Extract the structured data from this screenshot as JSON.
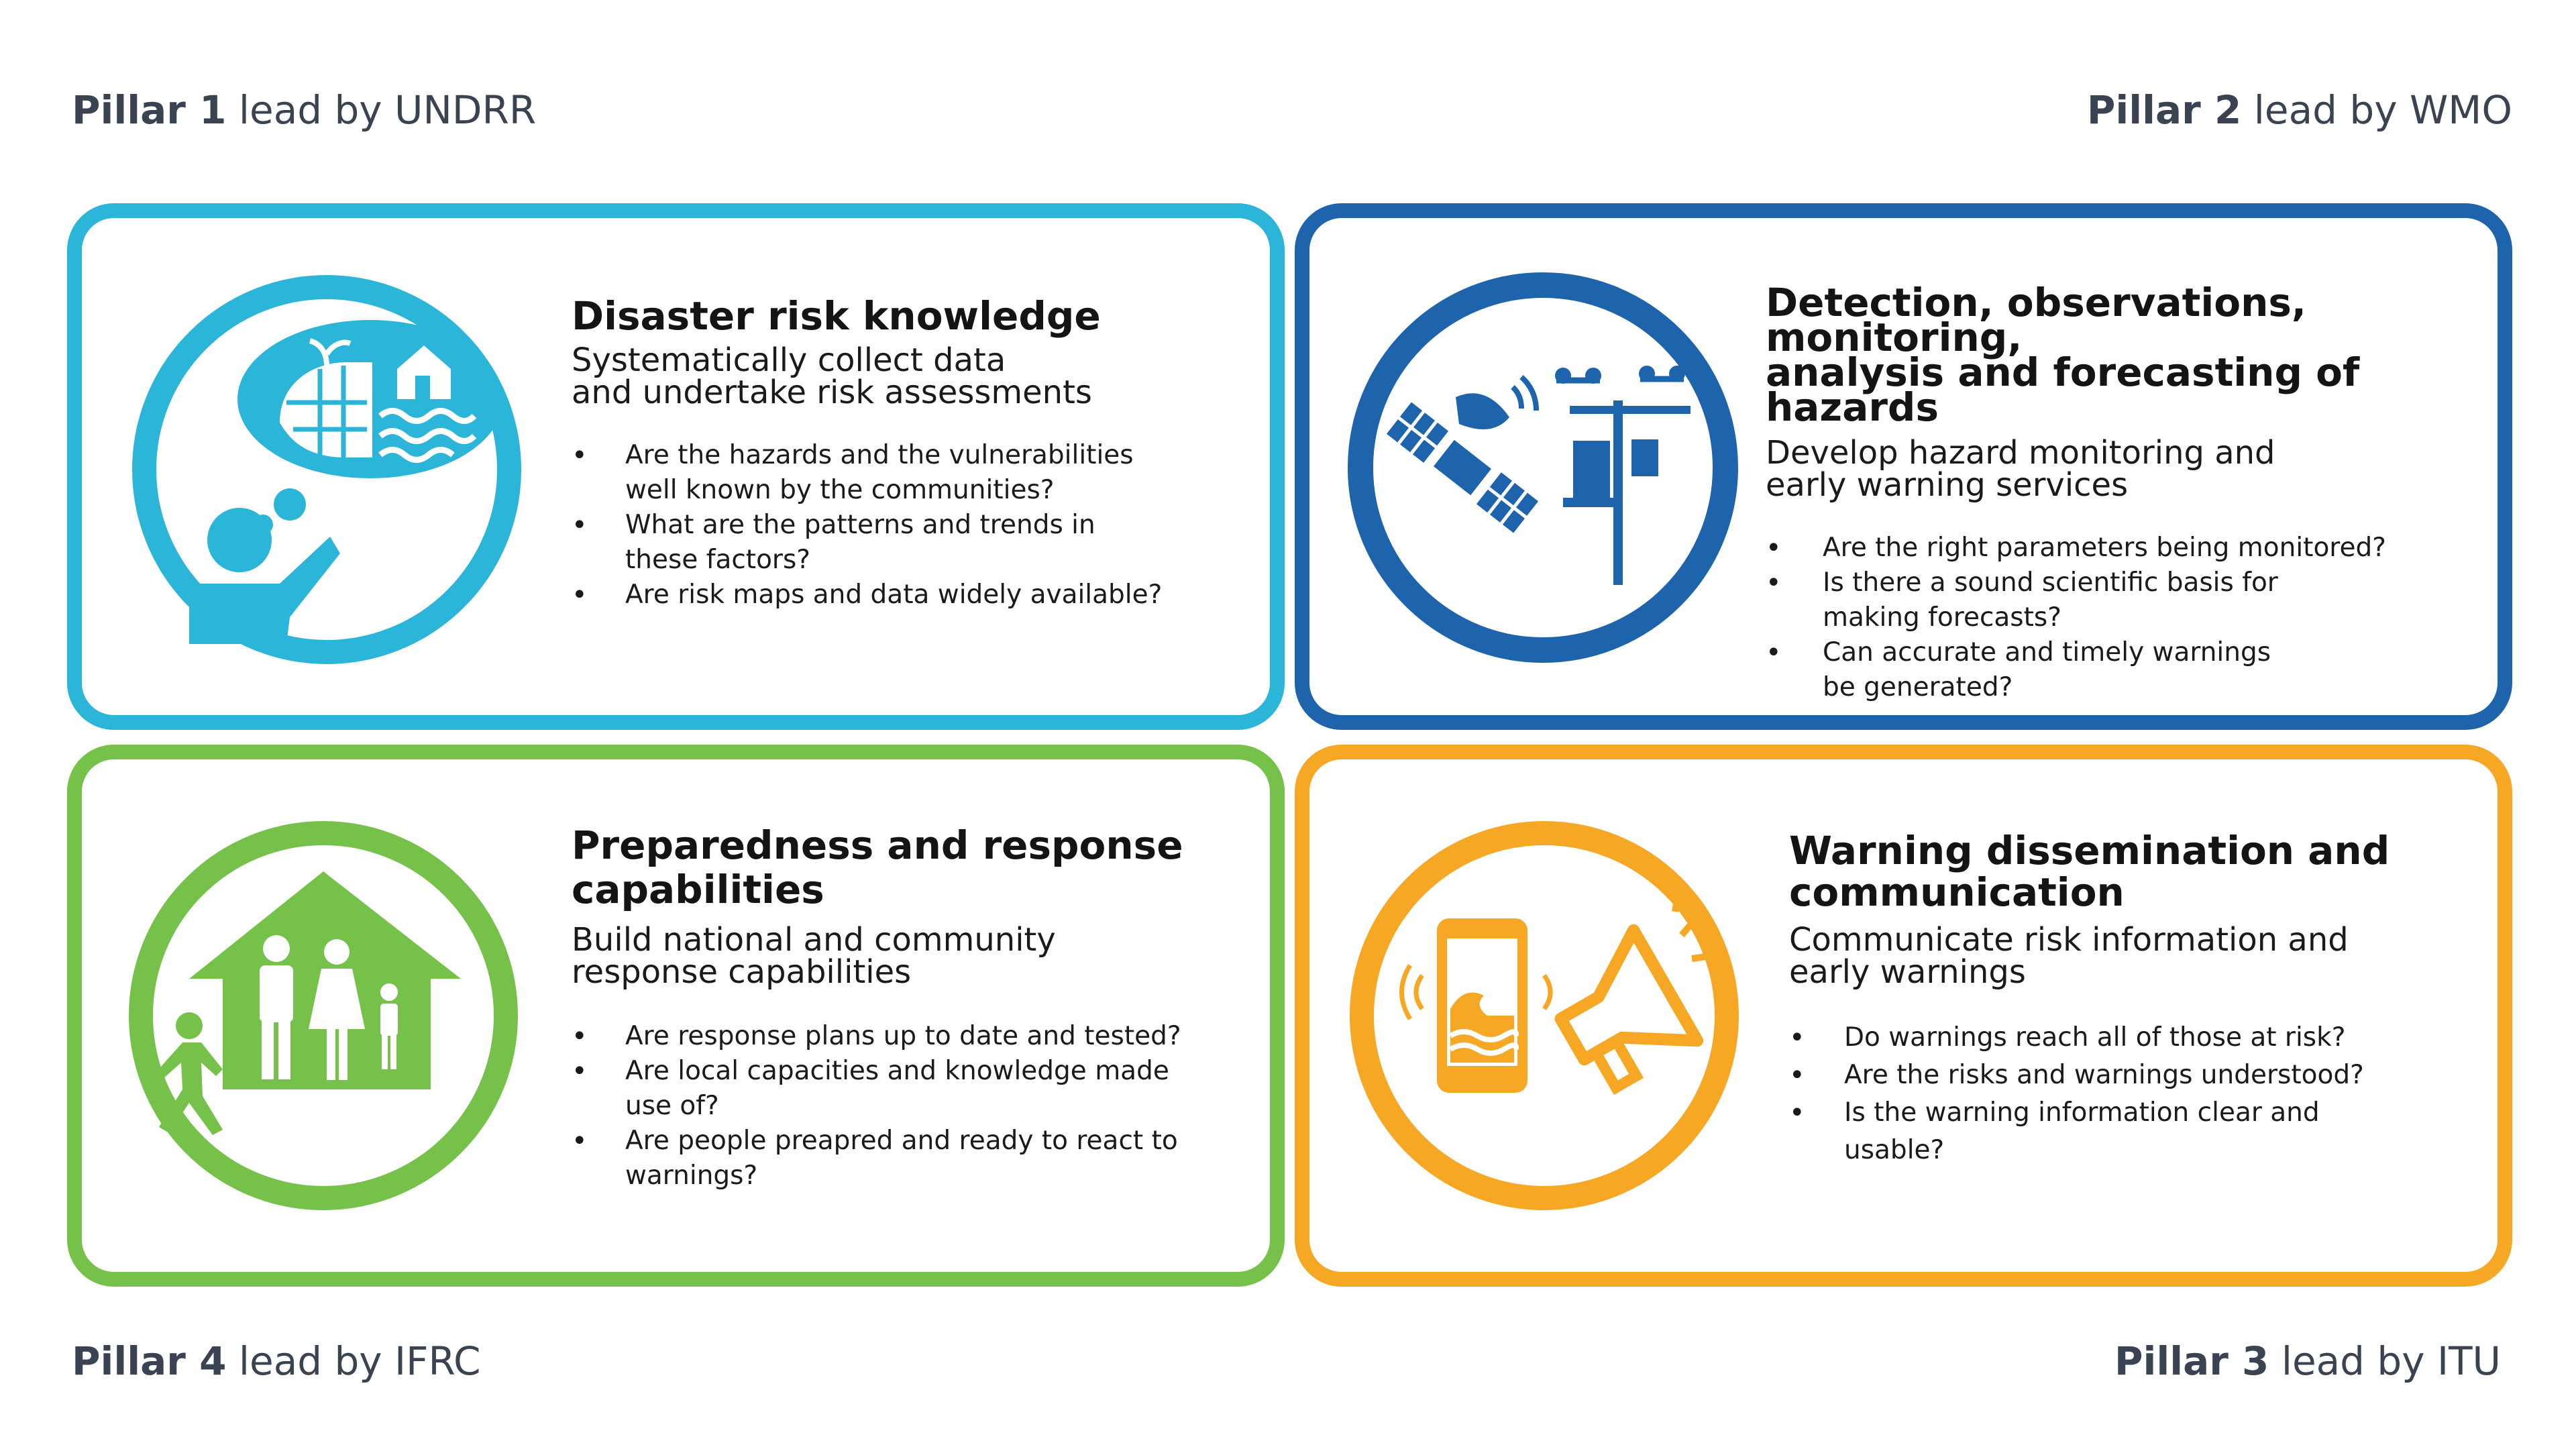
{
  "pillars": {
    "p1": {
      "bold": "Pillar 1",
      "rest": " lead by UNDRR"
    },
    "p2": {
      "bold": "Pillar 2",
      "rest": " lead by WMO"
    },
    "p3": {
      "bold": "Pillar 3",
      "rest": " lead by ITU"
    },
    "p4": {
      "bold": "Pillar 4",
      "rest": " lead by IFRC"
    }
  },
  "cards": {
    "risk": {
      "title_lines": [
        "Disaster risk knowledge"
      ],
      "subtitle_lines": [
        "Systematically collect data",
        "and undertake risk assessments"
      ],
      "bullets": [
        [
          "Are the hazards and the vulnerabilities",
          "well known by the communities?"
        ],
        [
          "What are the patterns and trends in",
          "these factors?"
        ],
        [
          "Are risk maps and data widely available?"
        ]
      ],
      "color": "#2bb5d8",
      "icon": "thinking-person-hazards-icon"
    },
    "detection": {
      "title_lines": [
        "Detection, observations, monitoring,",
        "analysis and forecasting of hazards"
      ],
      "subtitle_lines": [
        "Develop hazard monitoring and",
        "early warning services"
      ],
      "bullets": [
        [
          "Are the right parameters being monitored?"
        ],
        [
          "Is there a sound scientific basis for",
          "making forecasts?"
        ],
        [
          "Can accurate and timely warnings",
          "be generated?"
        ]
      ],
      "color": "#1d64ad",
      "icon": "satellite-weather-station-icon"
    },
    "preparedness": {
      "title_lines": [
        "Preparedness and response",
        "capabilities"
      ],
      "subtitle_lines": [
        "Build national and community",
        "response capabilities"
      ],
      "bullets": [
        [
          "Are response plans up to date and tested?"
        ],
        [
          "Are local capacities and knowledge made",
          "use of?"
        ],
        [
          "Are people preapred and ready to react to",
          "warnings?"
        ]
      ],
      "color": "#75c14a",
      "icon": "family-house-icon"
    },
    "warning": {
      "title_lines": [
        "Warning dissemination and",
        "communication"
      ],
      "subtitle_lines": [
        "Communicate risk information and",
        "early warnings"
      ],
      "bullets": [
        [
          "Do warnings reach all of those at risk?"
        ],
        [
          "Are the risks and warnings understood?"
        ],
        [
          "Is the warning information clear and",
          "usable?"
        ]
      ],
      "color": "#f6a724",
      "icon": "phone-megaphone-icon"
    }
  }
}
